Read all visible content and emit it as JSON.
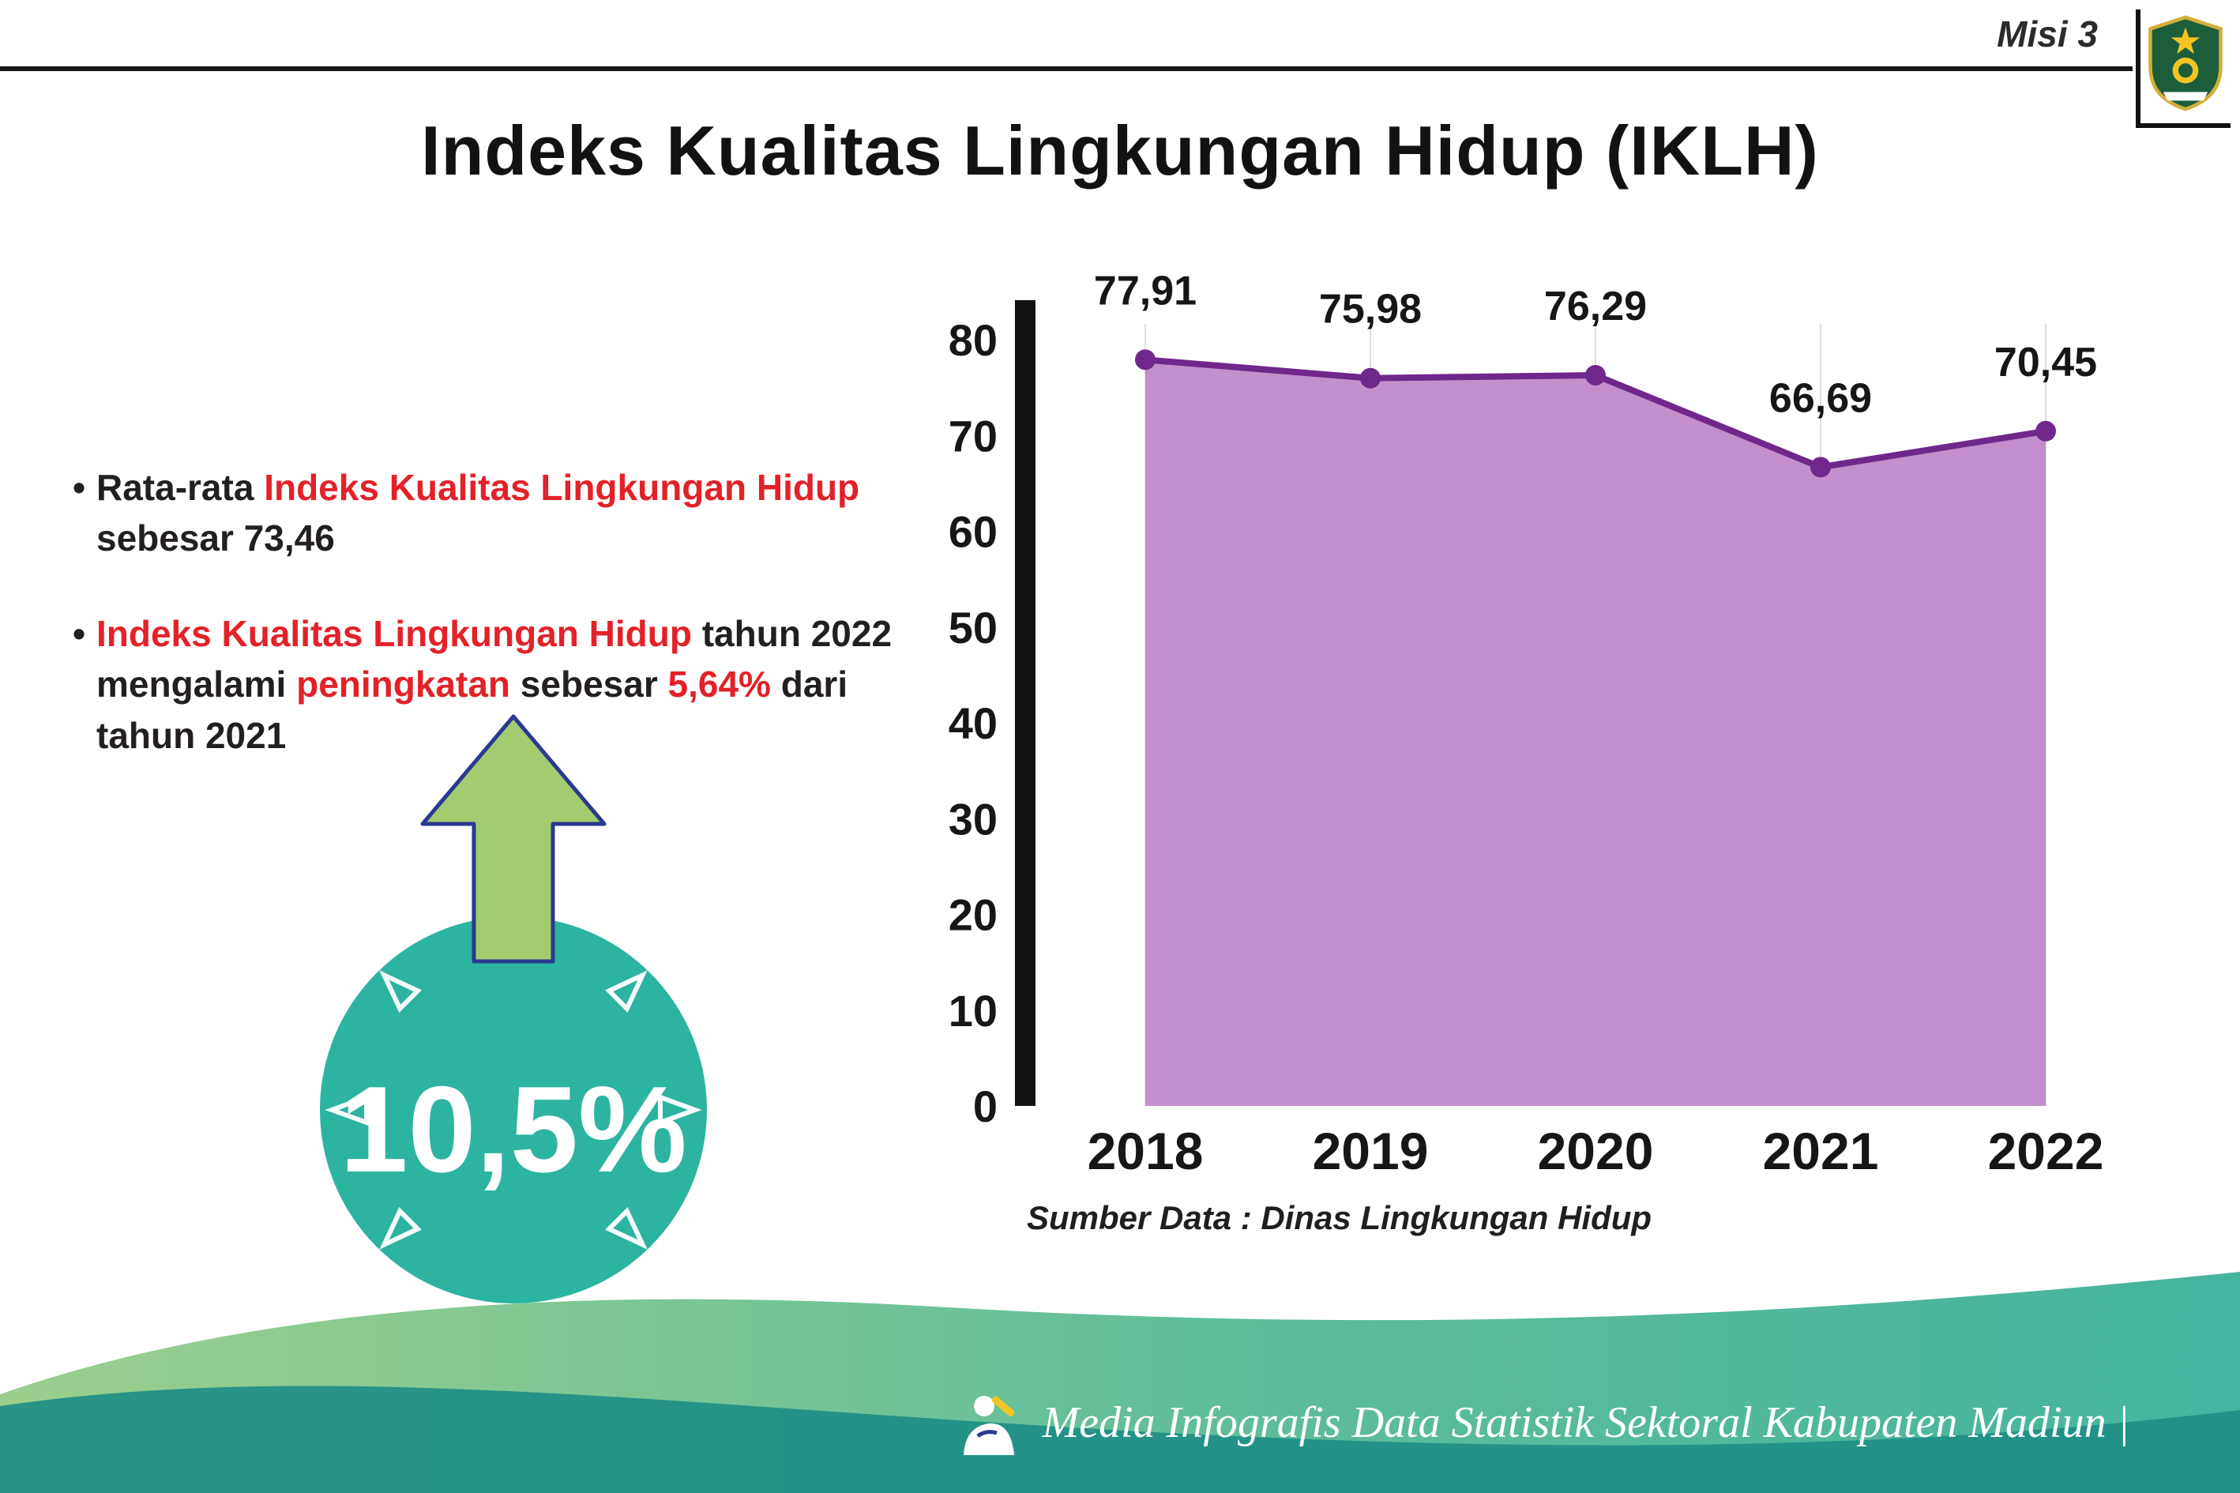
{
  "header": {
    "misi_label": "Misi 3",
    "title": "Indeks Kualitas Lingkungan Hidup (IKLH)"
  },
  "bullets": [
    {
      "segments": [
        {
          "text": "Rata-rata "
        },
        {
          "text": "Indeks Kualitas Lingkungan Hidup",
          "red": true
        },
        {
          "br": true
        },
        {
          "text": "sebesar 73,46"
        }
      ]
    },
    {
      "segments": [
        {
          "text": "Indeks Kualitas Lingkungan Hidup",
          "red": true
        },
        {
          "text": " tahun 2022"
        },
        {
          "br": true
        },
        {
          "text": "mengalami "
        },
        {
          "text": "peningkatan",
          "red": true
        },
        {
          "text": " sebesar "
        },
        {
          "text": "5,64%",
          "red": true
        },
        {
          "text": " dari"
        },
        {
          "br": true
        },
        {
          "text": "tahun 2021"
        }
      ]
    }
  ],
  "badge": {
    "value": "10,5%",
    "circle_color": "#2cb4a0",
    "arrow_color": "#a3cb70",
    "arrow_outline": "#2b3990"
  },
  "chart_data": {
    "type": "area",
    "categories": [
      "2018",
      "2019",
      "2020",
      "2021",
      "2022"
    ],
    "values": [
      77.91,
      75.98,
      76.29,
      66.69,
      70.45
    ],
    "point_labels": [
      "77,91",
      "75,98",
      "76,29",
      "66,69",
      "70,45"
    ],
    "ylim": [
      0,
      80
    ],
    "yticks": [
      0,
      10,
      20,
      30,
      40,
      50,
      60,
      70,
      80
    ],
    "grid": "vertical-light",
    "legend": "none",
    "line_color": "#70278b",
    "point_color": "#70278b",
    "fill_color": "#c38fcd",
    "source": "Sumber Data : Dinas Lingkungan Hidup"
  },
  "footer": {
    "caption": "Media Infografis Data Statistik Sektoral Kabupaten Madiun |"
  },
  "colors": {
    "red": "#e32128",
    "teal": "#2cb4a0",
    "footer_band": "#31a796",
    "wave_green": "#9bcf8e",
    "wave_teal": "#45b49e",
    "wave_dark": "#1f8e85"
  }
}
